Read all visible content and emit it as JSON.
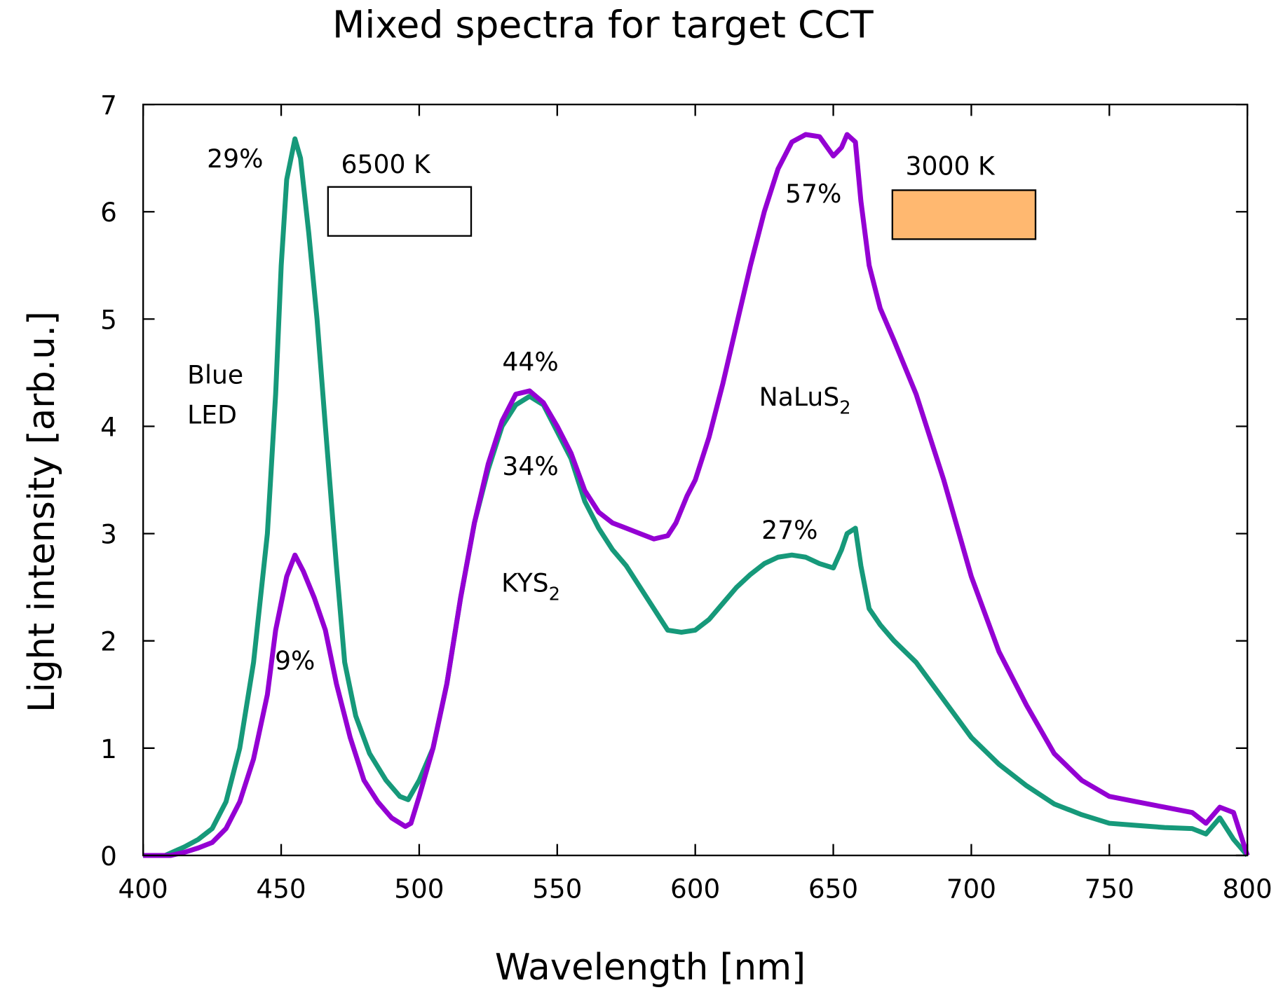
{
  "chart_data": {
    "type": "line",
    "title": "Mixed spectra for target CCT",
    "xlabel": "Wavelength [nm]",
    "ylabel": "Light intensity [arb.u.]",
    "xlim": [
      400,
      800
    ],
    "ylim": [
      0,
      7
    ],
    "xticks": [
      "400",
      "450",
      "500",
      "550",
      "600",
      "650",
      "700",
      "750",
      "800"
    ],
    "yticks": [
      "0",
      "1",
      "2",
      "3",
      "4",
      "5",
      "6",
      "7"
    ],
    "grid": false,
    "series": [
      {
        "name": "6500 K",
        "color": "#16997a",
        "x": [
          400,
          408,
          415,
          420,
          425,
          430,
          435,
          440,
          445,
          448,
          450,
          452,
          455,
          457,
          460,
          463,
          466,
          470,
          473,
          477,
          482,
          488,
          493,
          496,
          500,
          505,
          510,
          515,
          520,
          525,
          530,
          535,
          540,
          545,
          550,
          555,
          560,
          565,
          570,
          575,
          580,
          585,
          590,
          595,
          600,
          605,
          610,
          615,
          620,
          625,
          630,
          635,
          640,
          645,
          650,
          653,
          655,
          658,
          660,
          663,
          667,
          672,
          680,
          690,
          700,
          710,
          720,
          730,
          740,
          750,
          760,
          770,
          780,
          785,
          790,
          795,
          800
        ],
        "y": [
          0,
          0,
          0.08,
          0.15,
          0.25,
          0.5,
          1.0,
          1.8,
          3.0,
          4.3,
          5.5,
          6.3,
          6.68,
          6.5,
          5.8,
          5.0,
          4.0,
          2.7,
          1.8,
          1.3,
          0.95,
          0.7,
          0.55,
          0.52,
          0.7,
          1.0,
          1.6,
          2.4,
          3.1,
          3.6,
          4.0,
          4.2,
          4.28,
          4.2,
          3.95,
          3.7,
          3.3,
          3.05,
          2.85,
          2.7,
          2.5,
          2.3,
          2.1,
          2.08,
          2.1,
          2.2,
          2.35,
          2.5,
          2.62,
          2.72,
          2.78,
          2.8,
          2.78,
          2.72,
          2.68,
          2.85,
          3.0,
          3.05,
          2.7,
          2.3,
          2.15,
          2.0,
          1.8,
          1.45,
          1.1,
          0.85,
          0.65,
          0.48,
          0.38,
          0.3,
          0.28,
          0.26,
          0.25,
          0.2,
          0.35,
          0.15,
          0
        ]
      },
      {
        "name": "3000 K",
        "color": "#9400d3",
        "x": [
          400,
          410,
          415,
          420,
          425,
          430,
          435,
          440,
          445,
          448,
          452,
          455,
          458,
          462,
          466,
          470,
          475,
          480,
          485,
          490,
          495,
          497,
          500,
          505,
          510,
          515,
          520,
          525,
          530,
          535,
          540,
          545,
          550,
          555,
          560,
          565,
          570,
          575,
          580,
          585,
          590,
          593,
          597,
          600,
          605,
          610,
          615,
          620,
          625,
          630,
          635,
          640,
          645,
          650,
          653,
          655,
          658,
          660,
          663,
          667,
          672,
          680,
          690,
          700,
          710,
          720,
          730,
          740,
          750,
          760,
          770,
          780,
          785,
          790,
          795,
          800
        ],
        "y": [
          0,
          0,
          0.03,
          0.07,
          0.12,
          0.25,
          0.5,
          0.9,
          1.5,
          2.1,
          2.6,
          2.8,
          2.65,
          2.4,
          2.1,
          1.6,
          1.1,
          0.7,
          0.5,
          0.35,
          0.27,
          0.3,
          0.55,
          1.0,
          1.6,
          2.4,
          3.1,
          3.65,
          4.05,
          4.3,
          4.33,
          4.22,
          4.0,
          3.75,
          3.4,
          3.2,
          3.1,
          3.05,
          3.0,
          2.95,
          2.98,
          3.1,
          3.35,
          3.5,
          3.9,
          4.4,
          4.95,
          5.5,
          6.0,
          6.4,
          6.65,
          6.72,
          6.7,
          6.52,
          6.6,
          6.72,
          6.65,
          6.1,
          5.5,
          5.1,
          4.8,
          4.3,
          3.5,
          2.6,
          1.9,
          1.4,
          0.95,
          0.7,
          0.55,
          0.5,
          0.45,
          0.4,
          0.3,
          0.45,
          0.4,
          0
        ]
      }
    ],
    "swatches": [
      {
        "label": "6500 K",
        "color": "#ffffff"
      },
      {
        "label": "3000 K",
        "color": "#ffb870"
      }
    ],
    "annotations": {
      "blue_6500": "29%",
      "blue_3000": "9%",
      "blue_name_1": "Blue",
      "blue_name_2": "LED",
      "kys_3000": "44%",
      "kys_6500": "34%",
      "kys_name": "KYS",
      "kys_sub": "2",
      "nalus_3000": "57%",
      "nalus_6500": "27%",
      "nalus_name": "NaLuS",
      "nalus_sub": "2"
    }
  }
}
